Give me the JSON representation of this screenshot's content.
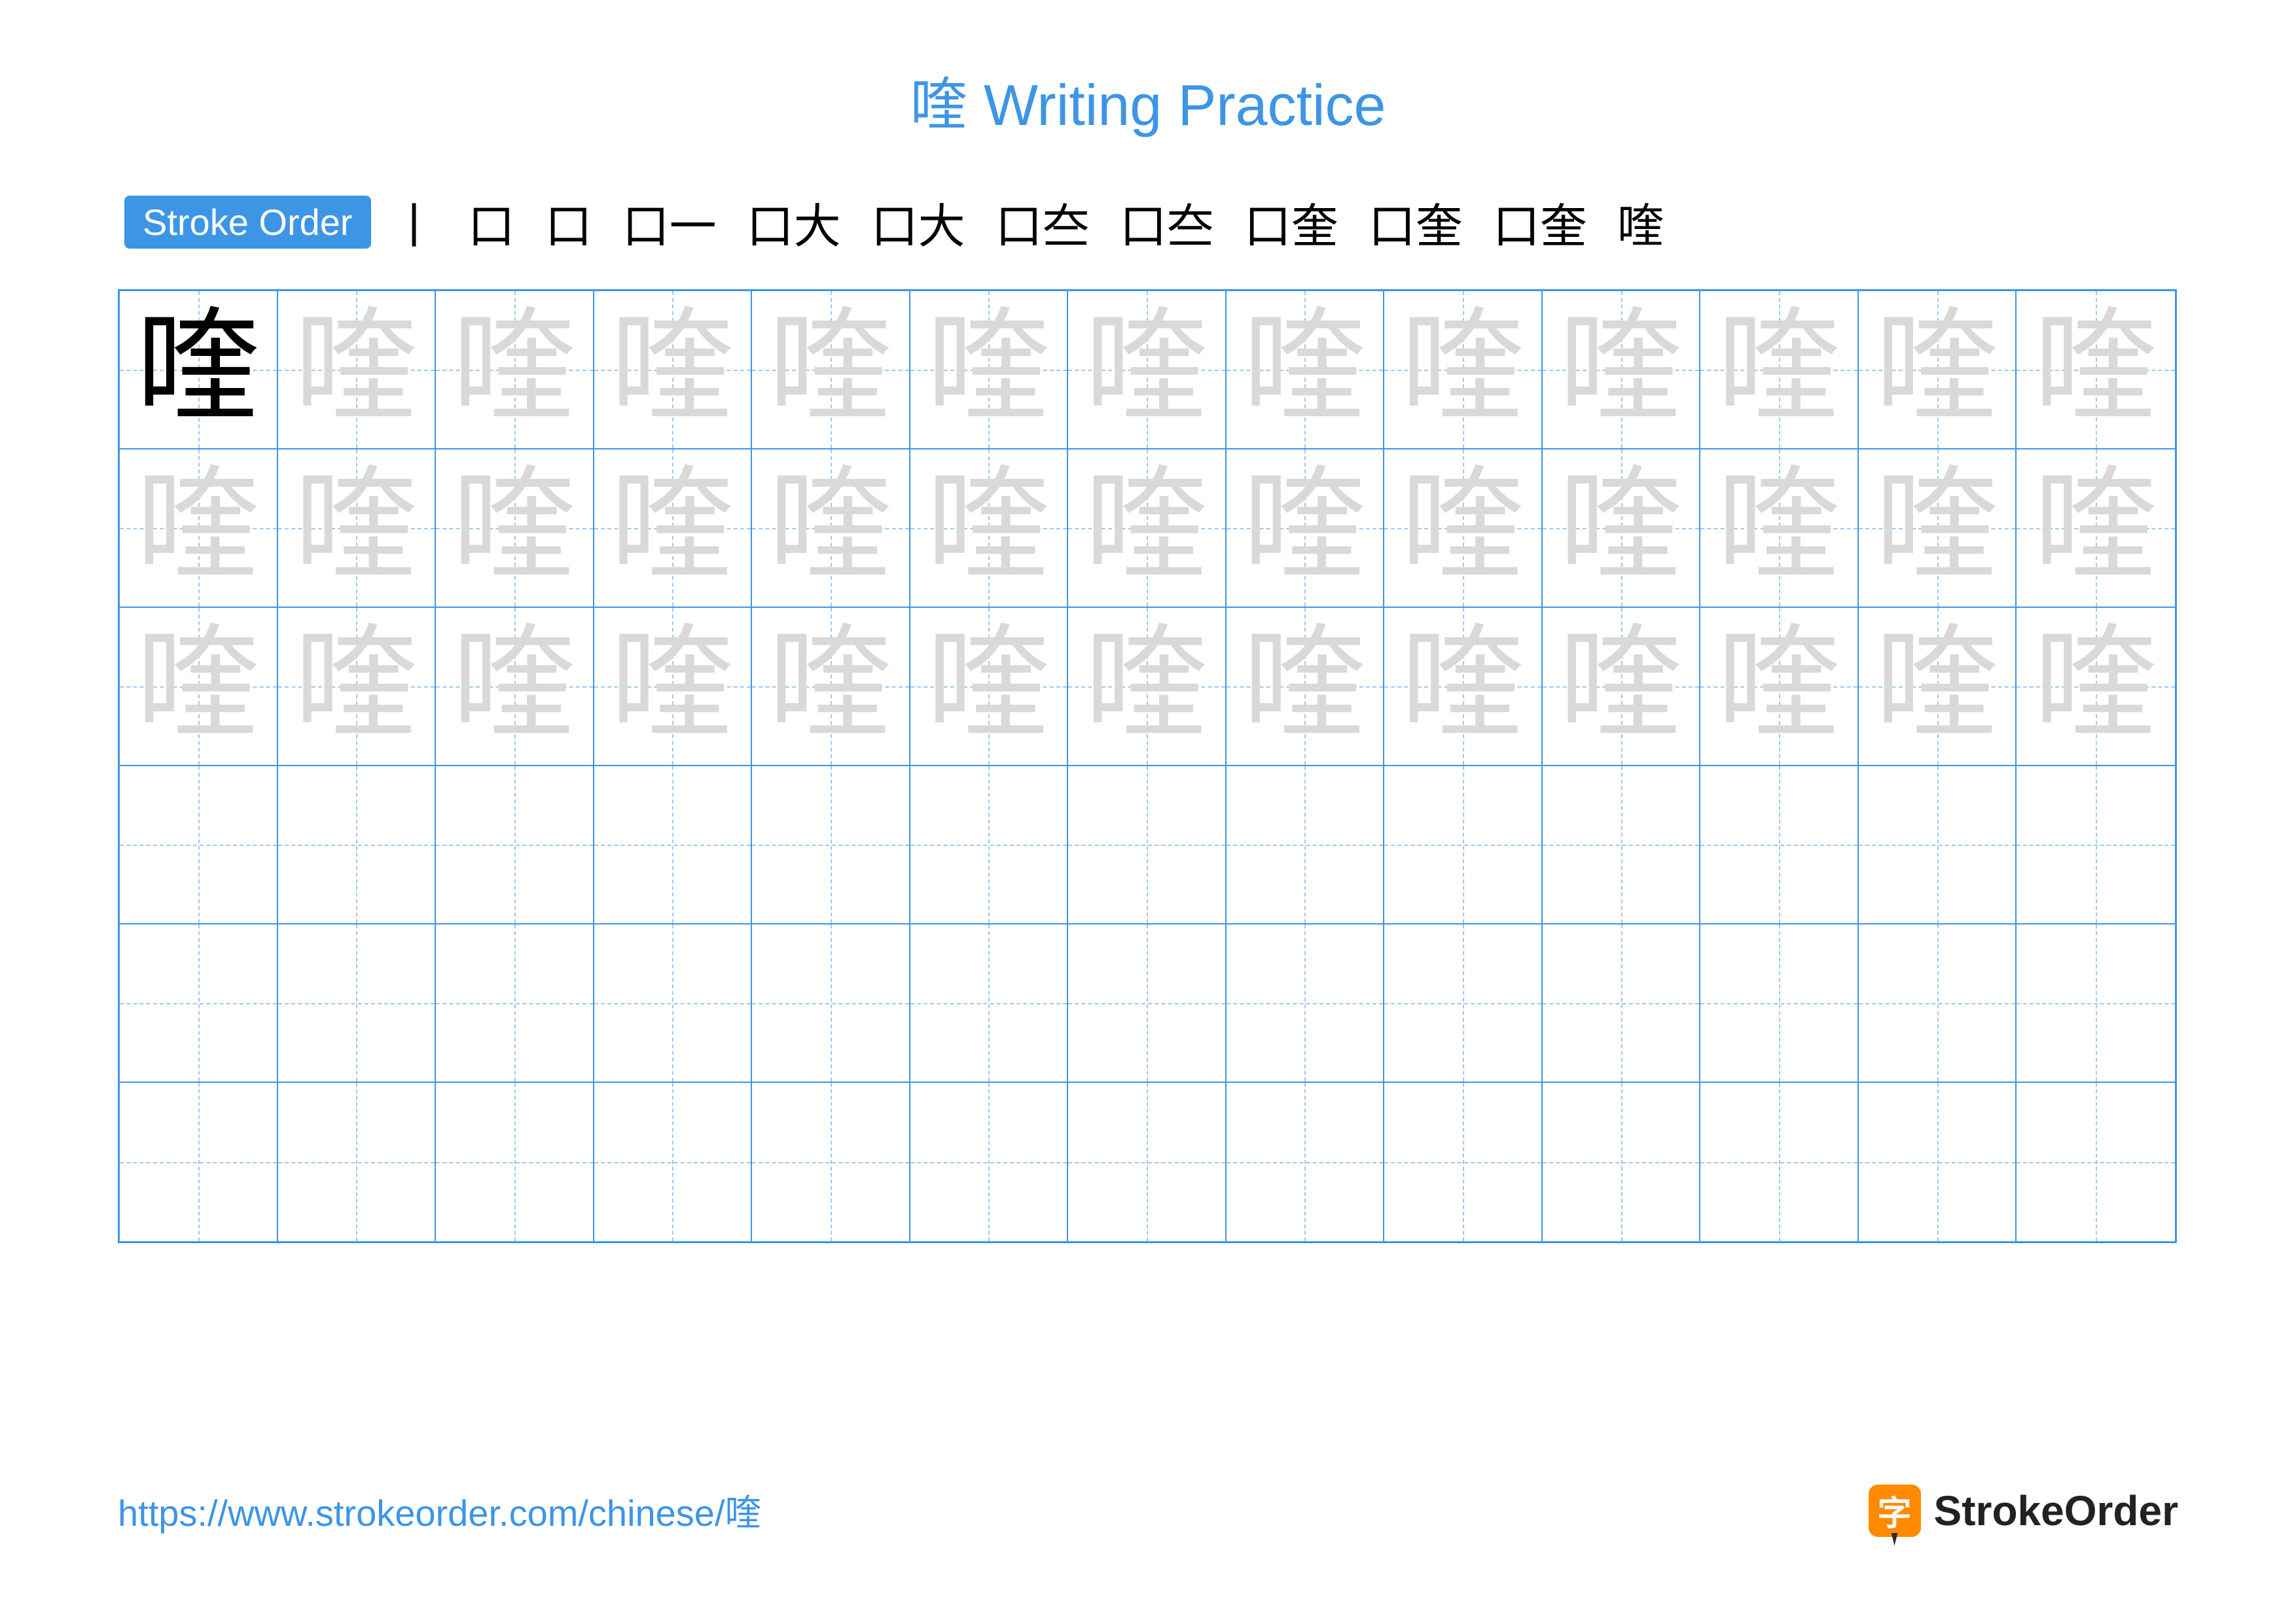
{
  "title": {
    "char": "喹",
    "suffix": " Writing Practice",
    "color": "#3d95e6",
    "fontsize": 88
  },
  "stroke_order": {
    "label": "Stroke Order",
    "label_bg": "#3d95e6",
    "label_color": "#ffffff",
    "steps": [
      "丨",
      "口",
      "口",
      "口一",
      "口大",
      "口大",
      "口夳",
      "口夳",
      "口奎",
      "口奎",
      "口奎",
      "喹"
    ]
  },
  "grid": {
    "rows": 6,
    "cols": 13,
    "cell_size": 242,
    "border_color": "#3d95e6",
    "guide_color": "#9ec9f2",
    "character": "喹",
    "solid_color": "#000000",
    "trace_color": "#d9d9d9",
    "trace_rows": 3
  },
  "footer": {
    "url": "https://www.strokeorder.com/chinese/喹",
    "url_color": "#3d95e6",
    "brand_icon_char": "字",
    "brand_icon_bg": "#ff8a00",
    "brand_text": "StrokeOrder"
  }
}
